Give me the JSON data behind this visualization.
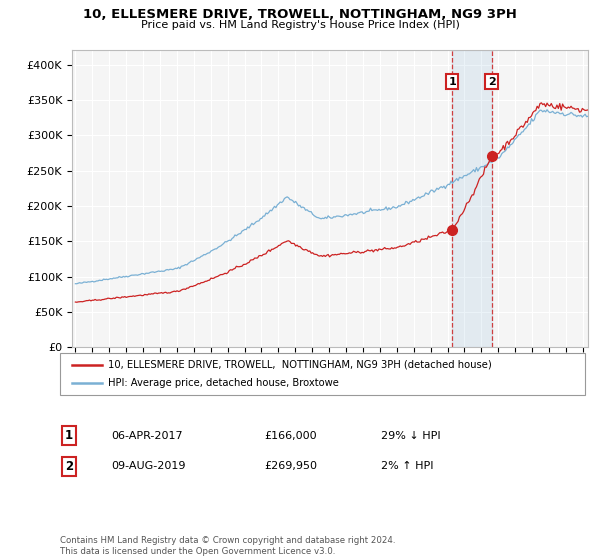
{
  "title1": "10, ELLESMERE DRIVE, TROWELL, NOTTINGHAM, NG9 3PH",
  "title2": "Price paid vs. HM Land Registry's House Price Index (HPI)",
  "background_color": "#ffffff",
  "plot_bg_color": "#f5f5f5",
  "grid_color": "#ffffff",
  "hpi_color": "#7ab0d4",
  "price_color": "#cc2222",
  "sale1_date_label": "06-APR-2017",
  "sale1_price": 166000,
  "sale1_hpi_diff": "29% ↓ HPI",
  "sale2_date_label": "09-AUG-2019",
  "sale2_price": 269950,
  "sale2_hpi_diff": "2% ↑ HPI",
  "legend_label1": "10, ELLESMERE DRIVE, TROWELL,  NOTTINGHAM, NG9 3PH (detached house)",
  "legend_label2": "HPI: Average price, detached house, Broxtowe",
  "footnote": "Contains HM Land Registry data © Crown copyright and database right 2024.\nThis data is licensed under the Open Government Licence v3.0.",
  "ylim_max": 420000,
  "sale1_year": 2017.27,
  "sale2_year": 2019.6,
  "xmin": 1995,
  "xmax": 2025.3
}
